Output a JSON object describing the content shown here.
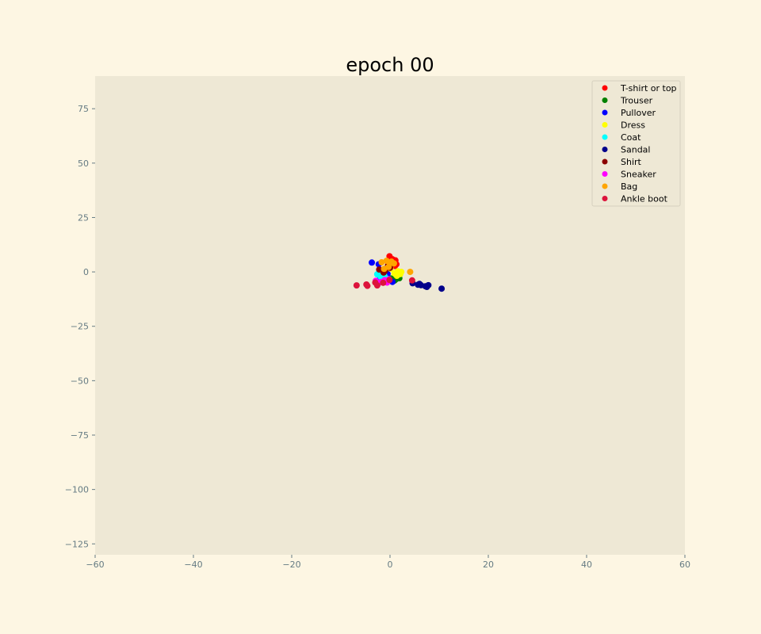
{
  "chart_data": {
    "type": "scatter",
    "title": "epoch 00",
    "xlabel": "",
    "ylabel": "",
    "xlim": [
      -60,
      60
    ],
    "ylim": [
      -130,
      90
    ],
    "xticks": [
      -60,
      -40,
      -20,
      0,
      20,
      40,
      60
    ],
    "yticks": [
      75,
      50,
      25,
      0,
      -25,
      -50,
      -75,
      -100,
      -125
    ],
    "xtick_labels": [
      "−60",
      "−40",
      "−20",
      "0",
      "20",
      "40",
      "60"
    ],
    "ytick_labels": [
      "75",
      "50",
      "25",
      "0",
      "−25",
      "−50",
      "−75",
      "−100",
      "−125"
    ],
    "grid": false,
    "legend_position": "top-right",
    "colors": {
      "figure_bg": "#fdf6e3",
      "axes_bg": "#eee8d5",
      "tick": "#657b83"
    },
    "series": [
      {
        "name": "T-shirt or top",
        "color": "#ff0000",
        "points": [
          [
            -0.1,
            7.2
          ],
          [
            0.5,
            5.8
          ],
          [
            1.1,
            5.3
          ],
          [
            0.8,
            4.1
          ],
          [
            1.3,
            3.5
          ],
          [
            0.3,
            3.2
          ],
          [
            1.0,
            2.7
          ],
          [
            0.6,
            4.6
          ]
        ]
      },
      {
        "name": "Trouser",
        "color": "#008000",
        "points": [
          [
            1.9,
            -2.9
          ],
          [
            1.2,
            -3.4
          ],
          [
            0.9,
            -4.0
          ],
          [
            1.5,
            -2.2
          ],
          [
            0.2,
            -3.0
          ]
        ]
      },
      {
        "name": "Pullover",
        "color": "#0000ff",
        "points": [
          [
            -3.7,
            4.3
          ],
          [
            -2.3,
            3.5
          ],
          [
            -1.5,
            -0.4
          ],
          [
            0.5,
            -4.6
          ],
          [
            -0.5,
            -0.9
          ],
          [
            -2.0,
            -2.3
          ]
        ]
      },
      {
        "name": "Dress",
        "color": "#ffff00",
        "points": [
          [
            1.6,
            0.3
          ],
          [
            2.1,
            -1.0
          ],
          [
            0.9,
            -0.6
          ],
          [
            1.4,
            -1.8
          ],
          [
            0.1,
            1.5
          ],
          [
            2.3,
            0.0
          ]
        ]
      },
      {
        "name": "Coat",
        "color": "#00ffff",
        "points": [
          [
            -2.6,
            -1.1
          ],
          [
            -1.9,
            -2.2
          ],
          [
            -0.7,
            -3.0
          ],
          [
            -2.3,
            -0.4
          ],
          [
            -1.2,
            -1.6
          ]
        ]
      },
      {
        "name": "Sandal",
        "color": "#00008b",
        "points": [
          [
            4.6,
            -5.2
          ],
          [
            5.7,
            -5.9
          ],
          [
            6.3,
            -6.1
          ],
          [
            7.2,
            -6.6
          ],
          [
            7.8,
            -6.1
          ],
          [
            10.5,
            -7.7
          ],
          [
            7.5,
            -6.9
          ],
          [
            6.0,
            -5.5
          ]
        ]
      },
      {
        "name": "Shirt",
        "color": "#8b0000",
        "points": [
          [
            -2.2,
            1.1
          ],
          [
            -1.0,
            0.6
          ],
          [
            0.0,
            1.9
          ],
          [
            -0.4,
            3.1
          ],
          [
            -1.3,
            -0.3
          ]
        ]
      },
      {
        "name": "Sneaker",
        "color": "#ff00ff",
        "points": [
          [
            -2.9,
            -4.1
          ],
          [
            -1.8,
            -4.6
          ],
          [
            -0.6,
            -4.9
          ],
          [
            -0.2,
            -3.4
          ],
          [
            -2.5,
            -5.7
          ],
          [
            -1.1,
            -3.8
          ]
        ]
      },
      {
        "name": "Bag",
        "color": "#ffa500",
        "points": [
          [
            -1.7,
            4.4
          ],
          [
            -0.7,
            5.1
          ],
          [
            0.3,
            4.7
          ],
          [
            0.8,
            3.9
          ],
          [
            -1.2,
            1.4
          ],
          [
            4.1,
            0.0
          ],
          [
            -0.3,
            2.3
          ],
          [
            0.0,
            4.0
          ]
        ]
      },
      {
        "name": "Ankle boot",
        "color": "#dc143c",
        "points": [
          [
            -6.8,
            -6.2
          ],
          [
            -4.8,
            -5.8
          ],
          [
            -4.6,
            -6.4
          ],
          [
            -2.6,
            -6.2
          ],
          [
            -1.4,
            -5.0
          ],
          [
            4.5,
            -3.9
          ],
          [
            -0.1,
            -3.7
          ],
          [
            -3.0,
            -4.9
          ]
        ]
      }
    ]
  }
}
